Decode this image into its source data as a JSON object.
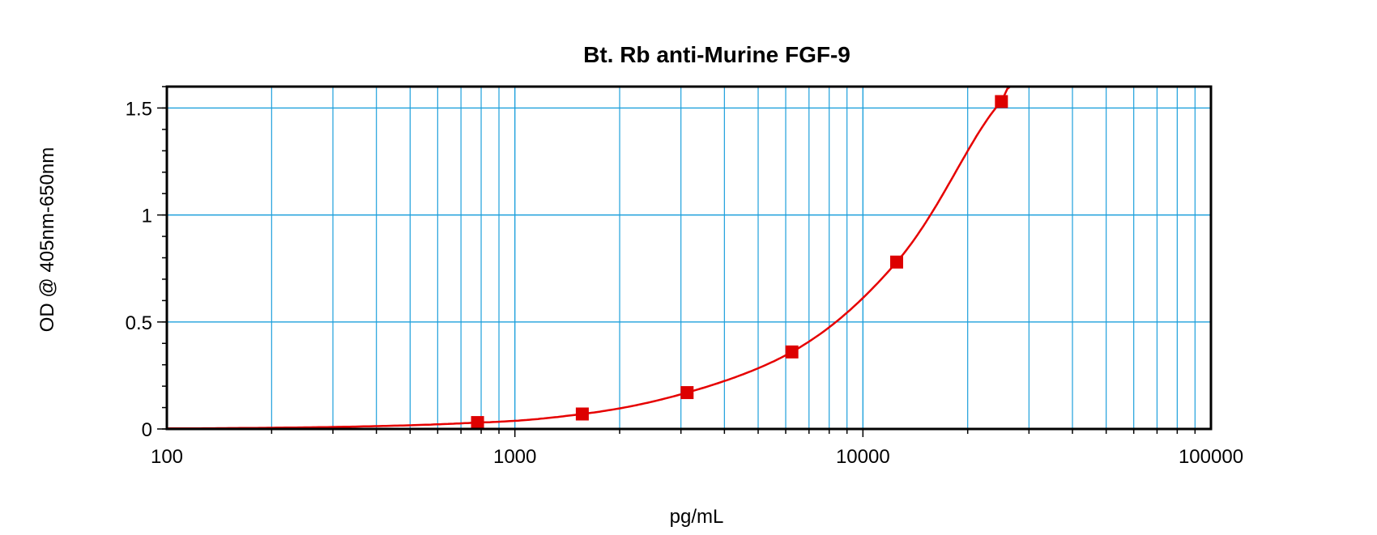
{
  "chart_data": {
    "type": "scatter",
    "title": "Bt. Rb anti-Murine FGF-9",
    "xlabel": "pg/mL",
    "ylabel": "OD @ 405nm-650nm",
    "x_scale": "log",
    "xlim": [
      100,
      100000
    ],
    "ylim": [
      0,
      1.6
    ],
    "x_ticks": [
      100,
      1000,
      10000,
      100000
    ],
    "x_tick_labels": [
      "100",
      "1000",
      "10000",
      "100000"
    ],
    "y_ticks": [
      0,
      0.5,
      1,
      1.5
    ],
    "y_tick_labels": [
      "0",
      "0.5",
      "1",
      "1.5"
    ],
    "grid": true,
    "colors": {
      "grid": "#1ea0dc",
      "series": "#dd0000"
    },
    "series": [
      {
        "x": [
          781,
          1562,
          3125,
          6250,
          12500,
          25000
        ],
        "y": [
          0.03,
          0.07,
          0.17,
          0.36,
          0.78,
          1.53
        ]
      }
    ],
    "fit_curve": "connects points smoothly, extrapolated toward 100 at near 0"
  }
}
